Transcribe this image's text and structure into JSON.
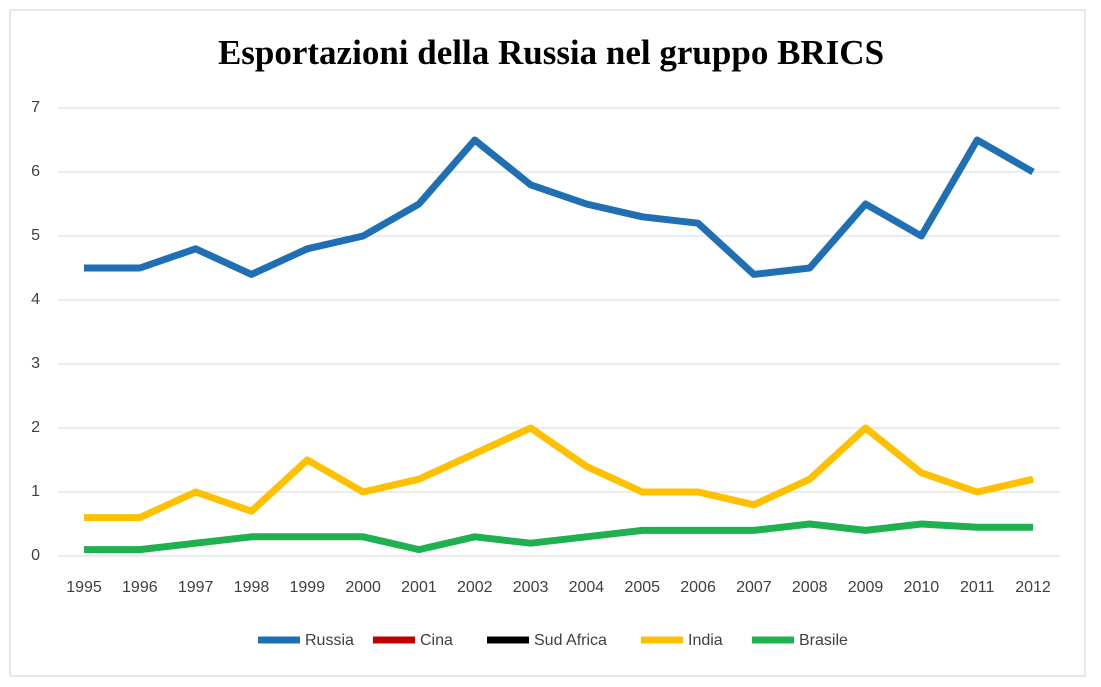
{
  "chart_data": {
    "type": "line",
    "title": "Esportazioni della Russia nel gruppo BRICS",
    "categories": [
      "1995",
      "1996",
      "1997",
      "1998",
      "1999",
      "2000",
      "2001",
      "2002",
      "2003",
      "2004",
      "2005",
      "2006",
      "2007",
      "2008",
      "2009",
      "2010",
      "2011",
      "2012"
    ],
    "series": [
      {
        "name": "Russia",
        "color": "#1f6fb5",
        "values": [
          4.5,
          4.5,
          4.8,
          4.4,
          4.8,
          5.0,
          5.5,
          6.5,
          5.8,
          5.5,
          5.3,
          5.2,
          4.4,
          4.5,
          5.5,
          5.0,
          6.5,
          6.0
        ]
      },
      {
        "name": "Cina",
        "color": "#c00000",
        "values": [
          null,
          null,
          null,
          null,
          null,
          null,
          null,
          null,
          null,
          null,
          null,
          null,
          null,
          null,
          null,
          null,
          null,
          null
        ]
      },
      {
        "name": "Sud Africa",
        "color": "#000000",
        "values": [
          null,
          null,
          null,
          null,
          null,
          null,
          null,
          null,
          null,
          null,
          null,
          null,
          null,
          null,
          null,
          null,
          null,
          null
        ]
      },
      {
        "name": "India",
        "color": "#ffc000",
        "values": [
          0.6,
          0.6,
          1.0,
          0.7,
          1.5,
          1.0,
          1.2,
          1.6,
          2.0,
          1.4,
          1.0,
          1.0,
          0.8,
          1.2,
          2.0,
          1.3,
          1.0,
          1.2
        ]
      },
      {
        "name": "Brasile",
        "color": "#1fb04f",
        "values": [
          0.1,
          0.1,
          0.2,
          0.3,
          0.3,
          0.3,
          0.1,
          0.3,
          0.2,
          0.3,
          0.4,
          0.4,
          0.4,
          0.5,
          0.4,
          0.5,
          0.45,
          0.45
        ]
      }
    ],
    "ylim": [
      0,
      7
    ],
    "yticks": [
      0,
      1,
      2,
      3,
      4,
      5,
      6,
      7
    ],
    "grid": true,
    "legend": "bottom"
  }
}
